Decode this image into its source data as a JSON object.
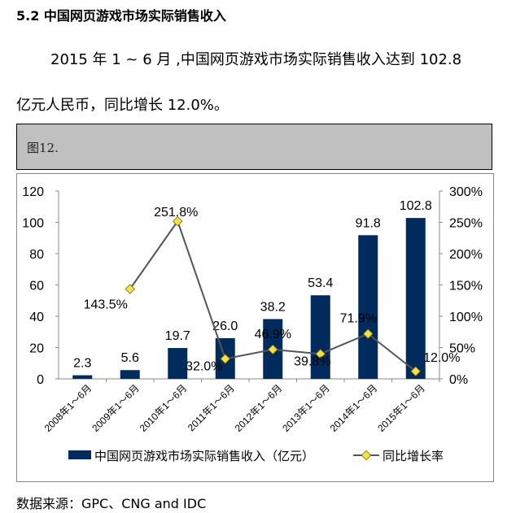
{
  "heading": "5.2 中国网页游戏市场实际销售收入",
  "paragraph": {
    "line1": "2015 年 1 ~ 6 月 ,中国网页游戏市场实际销售收入达到 102.8",
    "line2": "亿元人民币，同比增长 12.0%。"
  },
  "figure_label": "图12.",
  "source": "数据来源：GPC、CNG and IDC",
  "chart_data": {
    "type": "bar+line",
    "categories": [
      "2008年1～6月",
      "2009年1～6月",
      "2010年1～6月",
      "2011年1～6月",
      "2012年1～6月",
      "2013年1～6月",
      "2014年1～6月",
      "2015年1～6月"
    ],
    "series": [
      {
        "name": "中国网页游戏市场实际销售收入（亿元）",
        "type": "bar",
        "axis": "left",
        "color": "#002b5c",
        "values": [
          2.3,
          5.6,
          19.7,
          26.0,
          38.2,
          53.4,
          91.8,
          102.8
        ],
        "labels": [
          "2.3",
          "5.6",
          "19.7",
          "26.0",
          "38.2",
          "53.4",
          "91.8",
          "102.8"
        ]
      },
      {
        "name": "同比增长率",
        "type": "line",
        "axis": "right",
        "color": "#555555",
        "marker_color": "#f5e04a",
        "values": [
          null,
          143.5,
          251.8,
          32.0,
          46.9,
          39.8,
          71.9,
          12.0
        ],
        "labels": [
          null,
          "143.5%",
          "251.8%",
          "32.0%",
          "46.9%",
          "39.8%",
          "71.9%",
          "12.0%"
        ]
      }
    ],
    "left_axis": {
      "ylim": [
        0,
        120
      ],
      "ticks": [
        "0",
        "20",
        "40",
        "60",
        "80",
        "100",
        "120"
      ]
    },
    "right_axis": {
      "ylim": [
        0,
        300
      ],
      "ticks": [
        "0%",
        "50%",
        "100%",
        "150%",
        "200%",
        "250%",
        "300%"
      ]
    },
    "grid": false,
    "legend": "bottom"
  }
}
